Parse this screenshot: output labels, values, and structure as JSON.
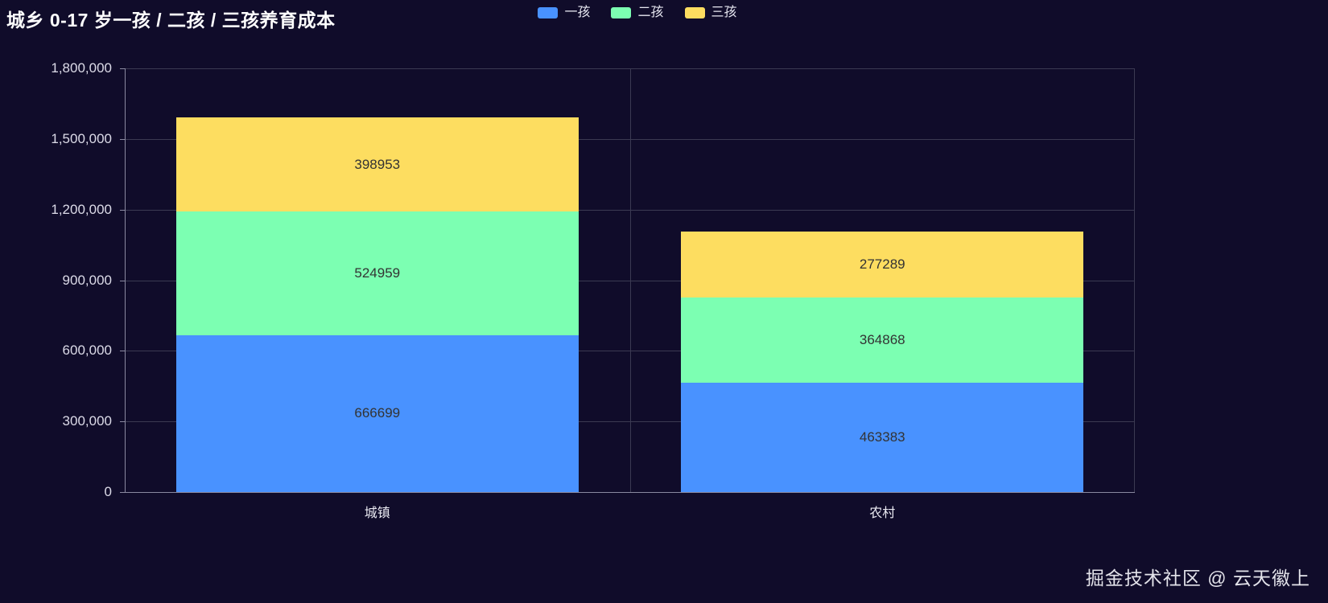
{
  "title": "城乡 0-17 岁一孩 / 二孩 / 三孩养育成本",
  "watermark": "掘金技术社区 @ 云天徽上",
  "legend": [
    {
      "label": "一孩",
      "color": "#4992ff"
    },
    {
      "label": "二孩",
      "color": "#7cffb2"
    },
    {
      "label": "三孩",
      "color": "#fddd60"
    }
  ],
  "chart_data": {
    "type": "bar",
    "stacked": true,
    "title": "城乡 0-17 岁一孩 / 二孩 / 三孩养育成本",
    "categories": [
      "城镇",
      "农村"
    ],
    "series": [
      {
        "name": "一孩",
        "color": "#4992ff",
        "values": [
          666699,
          463383
        ]
      },
      {
        "name": "二孩",
        "color": "#7cffb2",
        "values": [
          524959,
          364868
        ]
      },
      {
        "name": "三孩",
        "color": "#fddd60",
        "values": [
          398953,
          277289
        ]
      }
    ],
    "xlabel": "",
    "ylabel": "",
    "ylim": [
      0,
      1800000
    ],
    "yticks": [
      0,
      300000,
      600000,
      900000,
      1200000,
      1500000,
      1800000
    ],
    "ytick_labels": [
      "0",
      "300,000",
      "600,000",
      "900,000",
      "1,200,000",
      "1,500,000",
      "1,800,000"
    ],
    "grid": true,
    "legend_position": "top"
  },
  "colors": {
    "background": "#100c2a",
    "grid_line": "#3b3a52",
    "axis_line": "#8a89a0",
    "axis_label": "#dcdbe8",
    "bar_label": "#333333"
  }
}
